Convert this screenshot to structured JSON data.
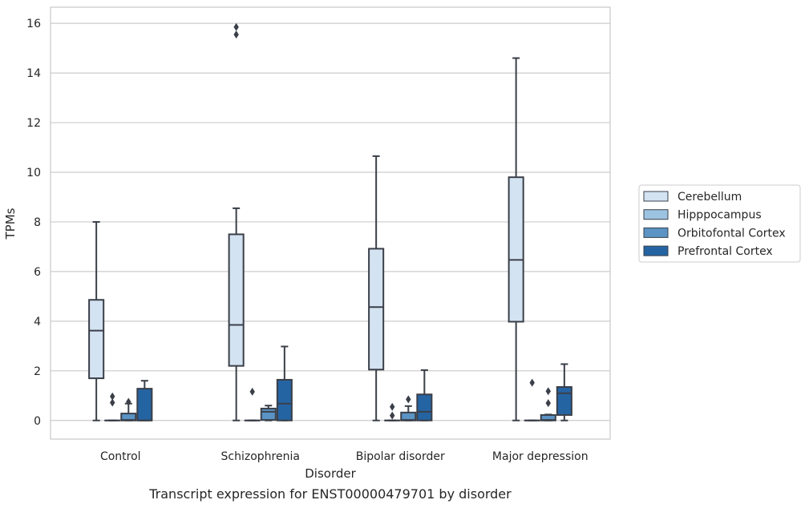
{
  "chart_data": {
    "type": "box",
    "caption": "Transcript expression for ENST00000479701 by disorder",
    "xlabel": "Disorder",
    "ylabel": "TPMs",
    "ylim": [
      -0.75,
      16.65
    ],
    "yticks": [
      0,
      2,
      4,
      6,
      8,
      10,
      12,
      14,
      16
    ],
    "grid": "horizontal",
    "legend_position": "right",
    "categories": [
      "Control",
      "Schizophrenia",
      "Bipolar disorder",
      "Major depression"
    ],
    "series": [
      {
        "name": "Cerebellum",
        "color": "#d4e3f2",
        "boxes": [
          {
            "whislo": 0,
            "q1": 1.7,
            "med": 3.62,
            "q3": 4.86,
            "whishi": 8.0,
            "fliers": []
          },
          {
            "whislo": 0,
            "q1": 2.2,
            "med": 3.85,
            "q3": 7.5,
            "whishi": 8.55,
            "fliers": [
              15.55,
              15.85
            ]
          },
          {
            "whislo": 0,
            "q1": 2.05,
            "med": 4.57,
            "q3": 6.92,
            "whishi": 10.65,
            "fliers": []
          },
          {
            "whislo": 0,
            "q1": 3.98,
            "med": 6.47,
            "q3": 9.8,
            "whishi": 14.6,
            "fliers": []
          }
        ]
      },
      {
        "name": "Hipppocampus",
        "color": "#9dc3e2",
        "boxes": [
          {
            "whislo": 0,
            "q1": 0,
            "med": 0,
            "q3": 0,
            "whishi": 0,
            "fliers": [
              0.72,
              0.97
            ]
          },
          {
            "whislo": 0,
            "q1": 0,
            "med": 0,
            "q3": 0,
            "whishi": 0,
            "fliers": [
              1.16
            ]
          },
          {
            "whislo": 0,
            "q1": 0,
            "med": 0,
            "q3": 0,
            "whishi": 0,
            "fliers": [
              0.2,
              0.55
            ]
          },
          {
            "whislo": 0,
            "q1": 0,
            "med": 0,
            "q3": 0,
            "whishi": 0,
            "fliers": [
              1.52
            ]
          }
        ]
      },
      {
        "name": "Orbitofontal Cortex",
        "color": "#5a93c4",
        "boxes": [
          {
            "whislo": 0,
            "q1": 0,
            "med": 0.02,
            "q3": 0.28,
            "whishi": 0.68,
            "fliers": [
              0.75
            ]
          },
          {
            "whislo": 0,
            "q1": 0.02,
            "med": 0.35,
            "q3": 0.48,
            "whishi": 0.6,
            "fliers": []
          },
          {
            "whislo": 0,
            "q1": 0,
            "med": 0.02,
            "q3": 0.32,
            "whishi": 0.58,
            "fliers": [
              0.85
            ]
          },
          {
            "whislo": 0,
            "q1": 0,
            "med": 0.02,
            "q3": 0.22,
            "whishi": 0.24,
            "fliers": [
              0.7,
              1.18
            ]
          }
        ]
      },
      {
        "name": "Prefrontal Cortex",
        "color": "#2564a3",
        "boxes": [
          {
            "whislo": 0,
            "q1": 0,
            "med": 0,
            "q3": 1.28,
            "whishi": 1.6,
            "fliers": []
          },
          {
            "whislo": 0,
            "q1": 0,
            "med": 0.68,
            "q3": 1.64,
            "whishi": 2.98,
            "fliers": []
          },
          {
            "whislo": 0,
            "q1": 0,
            "med": 0.35,
            "q3": 1.05,
            "whishi": 2.03,
            "fliers": []
          },
          {
            "whislo": 0,
            "q1": 0.22,
            "med": 1.1,
            "q3": 1.35,
            "whishi": 2.27,
            "fliers": []
          }
        ]
      }
    ]
  }
}
